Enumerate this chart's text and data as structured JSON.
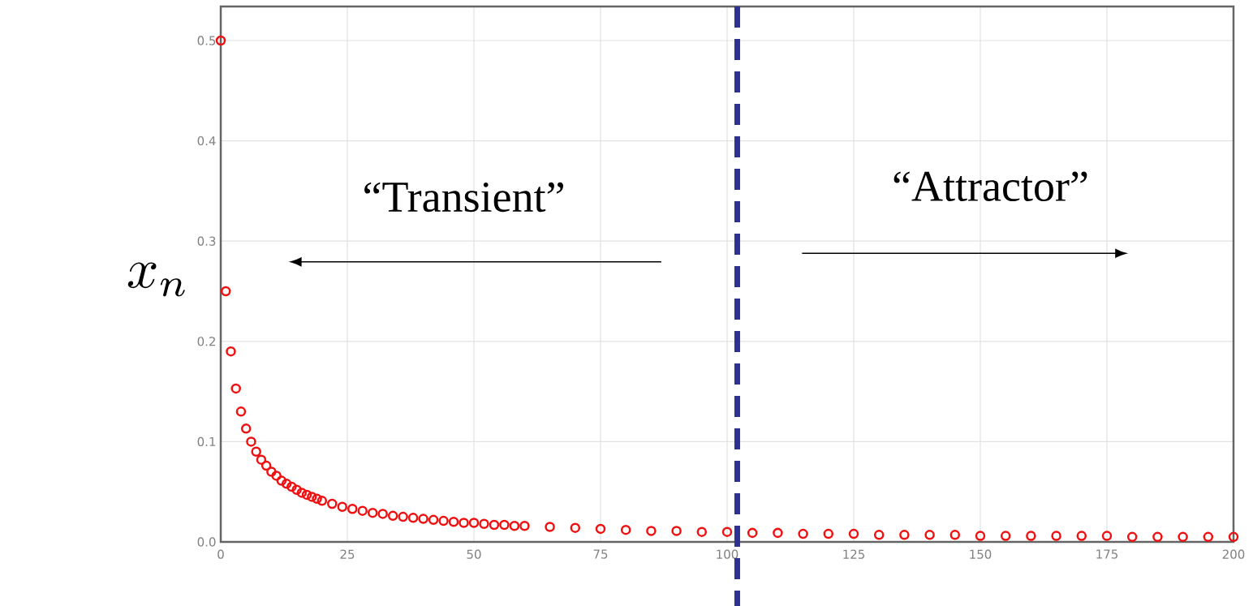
{
  "chart_data": {
    "type": "scatter",
    "ylabel": "x_n",
    "annotations": [
      "“Transient”",
      "“Attractor”"
    ],
    "x": [
      0,
      1,
      2,
      3,
      4,
      5,
      6,
      7,
      8,
      9,
      10,
      11,
      12,
      13,
      14,
      15,
      16,
      17,
      18,
      19,
      20,
      22,
      24,
      26,
      28,
      30,
      32,
      34,
      36,
      38,
      40,
      42,
      44,
      46,
      48,
      50,
      52,
      54,
      56,
      58,
      60,
      65,
      70,
      75,
      80,
      85,
      90,
      95,
      100,
      105,
      110,
      115,
      120,
      125,
      130,
      135,
      140,
      145,
      150,
      155,
      160,
      165,
      170,
      175,
      180,
      185,
      190,
      195,
      200
    ],
    "series": [
      {
        "color": "#ee1111",
        "values": [
          0.5,
          0.25,
          0.19,
          0.153,
          0.13,
          0.113,
          0.1,
          0.09,
          0.082,
          0.076,
          0.07,
          0.066,
          0.061,
          0.058,
          0.055,
          0.052,
          0.049,
          0.047,
          0.045,
          0.043,
          0.041,
          0.038,
          0.035,
          0.033,
          0.031,
          0.029,
          0.028,
          0.026,
          0.025,
          0.024,
          0.023,
          0.022,
          0.021,
          0.02,
          0.019,
          0.019,
          0.018,
          0.017,
          0.017,
          0.016,
          0.016,
          0.015,
          0.014,
          0.013,
          0.012,
          0.011,
          0.011,
          0.01,
          0.01,
          0.009,
          0.009,
          0.008,
          0.008,
          0.008,
          0.007,
          0.007,
          0.007,
          0.007,
          0.006,
          0.006,
          0.006,
          0.006,
          0.006,
          0.006,
          0.005,
          0.005,
          0.005,
          0.005,
          0.005
        ]
      }
    ],
    "xlim": [
      0,
      200
    ],
    "ylim": [
      0,
      0.534
    ],
    "xticks": [
      0,
      25,
      50,
      75,
      100,
      125,
      150,
      175,
      200
    ],
    "yticks": [
      {
        "value": 0,
        "label": "0.0"
      },
      0.1,
      0.2,
      0.3,
      0.4,
      0.5
    ],
    "grid": true,
    "marker": "circle",
    "ref_lines": [
      {
        "axis": "x",
        "value": 102,
        "color": "#2e3192",
        "line_style": "dashed"
      }
    ]
  }
}
